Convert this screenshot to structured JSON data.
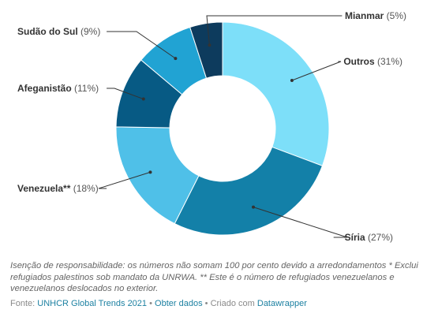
{
  "chart_data": {
    "type": "pie",
    "variant": "donut",
    "slices": [
      {
        "label": "Outros",
        "value": 31,
        "display": "(31%)",
        "color": "#7ddff9"
      },
      {
        "label": "Síria",
        "value": 27,
        "display": "(27%)",
        "color": "#1380a8"
      },
      {
        "label": "Venezuela**",
        "value": 18,
        "display": "(18%)",
        "color": "#4fc0e8"
      },
      {
        "label": "Afeganistão",
        "value": 11,
        "display": "(11%)",
        "color": "#075a84"
      },
      {
        "label": "Sudão do Sul",
        "value": 9,
        "display": "(9%)",
        "color": "#21a3d3"
      },
      {
        "label": "Mianmar",
        "value": 5,
        "display": "(5%)",
        "color": "#0d3b5d"
      }
    ]
  },
  "notes": {
    "disclaimer": "Isenção de responsabilidade: os números não somam 100 por cento devido a arredondamentos * Exclui refugiados palestinos sob mandato da UNRWA. ** Este é o número de refugiados venezuelanos e venezuelanos deslocados no exterior."
  },
  "footer": {
    "source_prefix": "Fonte:",
    "source_link": "UNHCR Global Trends 2021",
    "sep1": "•",
    "get_data": "Obter dados",
    "sep2": "•",
    "created_with": "Criado com",
    "tool_link": "Datawrapper"
  }
}
